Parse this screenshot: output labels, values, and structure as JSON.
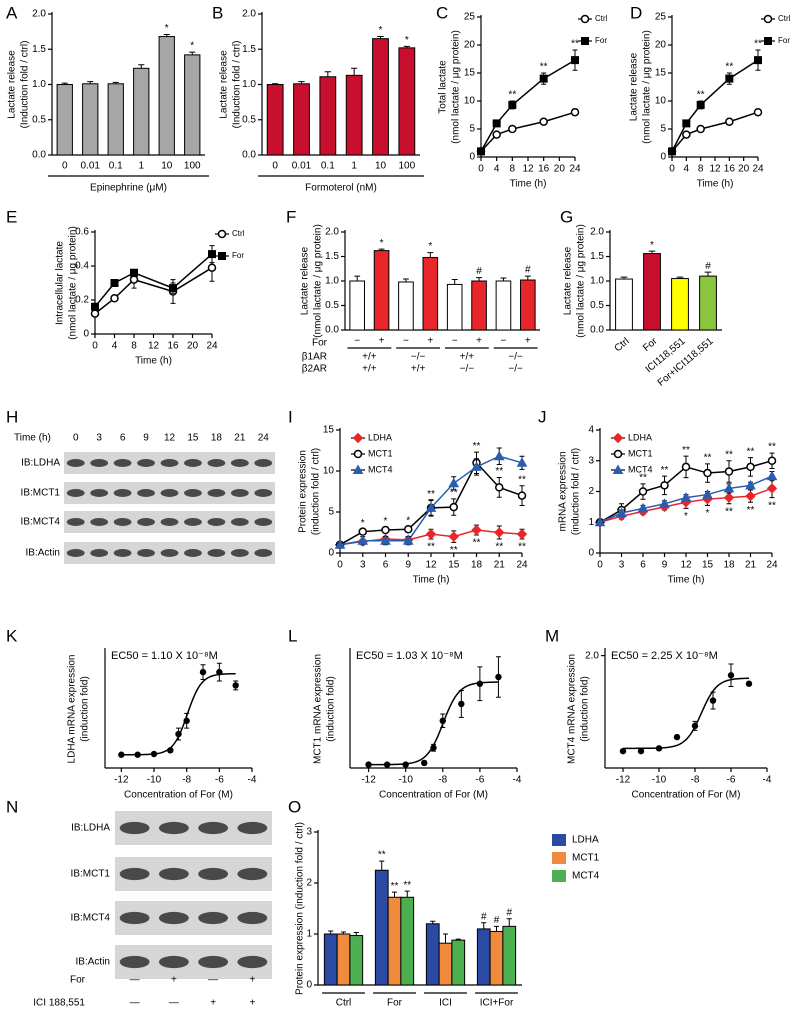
{
  "chart_data": [
    {
      "panel": "A",
      "type": "bar",
      "categories": [
        "0",
        "0.01",
        "0.1",
        "1",
        "10",
        "100"
      ],
      "values": [
        1.0,
        1.01,
        1.01,
        1.23,
        1.68,
        1.42
      ],
      "errors": [
        0.02,
        0.03,
        0.02,
        0.05,
        0.03,
        0.04
      ],
      "significance": [
        null,
        null,
        null,
        null,
        "*",
        "*"
      ],
      "color": "#a6a6a6",
      "ylim": [
        0,
        2
      ],
      "yticks": [
        {
          "value": 0,
          "label": "0.0"
        },
        0.5,
        {
          "value": 1,
          "label": "1.0"
        },
        1.5,
        {
          "value": 2,
          "label": "2.0"
        }
      ],
      "ylabel": [
        "Lactate release",
        "(Induction fold / ctrl)"
      ],
      "xlabel": "Epinephrine (μM)"
    },
    {
      "panel": "B",
      "type": "bar",
      "categories": [
        "0",
        "0.01",
        "0.1",
        "1",
        "10",
        "100"
      ],
      "values": [
        1.0,
        1.01,
        1.11,
        1.13,
        1.65,
        1.52
      ],
      "errors": [
        0.01,
        0.03,
        0.07,
        0.1,
        0.03,
        0.02
      ],
      "significance": [
        null,
        null,
        null,
        null,
        "*",
        "*"
      ],
      "color": "#c8102e",
      "ylim": [
        0,
        2
      ],
      "yticks": [
        {
          "value": 0,
          "label": "0.0"
        },
        0.5,
        {
          "value": 1,
          "label": "1.0"
        },
        1.5,
        {
          "value": 2,
          "label": "2.0"
        }
      ],
      "ylabel": [
        "Lactate release",
        "(Induction fold / ctrl)"
      ],
      "xlabel": "Formoterol (nM)"
    },
    {
      "panel": "C",
      "type": "line",
      "x": [
        0,
        4,
        8,
        16,
        24
      ],
      "xlim": [
        0,
        24
      ],
      "xticks": [
        0,
        4,
        8,
        12,
        16,
        20,
        24
      ],
      "ylim": [
        0,
        25
      ],
      "yticks": [
        0,
        5,
        10,
        15,
        20,
        25
      ],
      "ylabel": [
        "Total lactate",
        "(nmol lactate / μg protein)"
      ],
      "xlabel": "Time (h)",
      "legend": "right",
      "series": [
        {
          "name": "Ctrl",
          "color": "#000000",
          "marker": "circle-open",
          "values": [
            1,
            4,
            5,
            6.3,
            8
          ],
          "errors": [
            0.3,
            0.4,
            0.5,
            0.5,
            0.5
          ]
        },
        {
          "name": "For",
          "color": "#000000",
          "marker": "square",
          "values": [
            1,
            6,
            9.3,
            14,
            17.3
          ],
          "errors": [
            0.3,
            0.4,
            0.7,
            1,
            1.8
          ],
          "significance": [
            null,
            null,
            "**",
            "**",
            "**"
          ]
        }
      ]
    },
    {
      "panel": "D",
      "type": "line",
      "x": [
        0,
        4,
        8,
        16,
        24
      ],
      "xlim": [
        0,
        24
      ],
      "xticks": [
        0,
        4,
        8,
        12,
        16,
        20,
        24
      ],
      "ylim": [
        0,
        25
      ],
      "yticks": [
        0,
        5,
        10,
        15,
        20,
        25
      ],
      "ylabel": [
        "Lactate release",
        "(nmol lactate / μg protein)"
      ],
      "xlabel": "Time (h)",
      "legend": "right",
      "series": [
        {
          "name": "Ctrl",
          "color": "#000000",
          "marker": "circle-open",
          "values": [
            1,
            4,
            5,
            6.3,
            8
          ],
          "errors": [
            0.3,
            0.4,
            0.5,
            0.5,
            0.5
          ]
        },
        {
          "name": "For",
          "color": "#000000",
          "marker": "square",
          "values": [
            1,
            6,
            9.3,
            14,
            17.3
          ],
          "errors": [
            0.3,
            0.4,
            0.7,
            1,
            1.8
          ],
          "significance": [
            null,
            null,
            "**",
            "**",
            "**"
          ]
        }
      ]
    },
    {
      "panel": "E",
      "type": "line",
      "x": [
        0,
        4,
        8,
        16,
        24
      ],
      "xlim": [
        0,
        24
      ],
      "xticks": [
        0,
        4,
        8,
        12,
        16,
        20,
        24
      ],
      "ylim": [
        0,
        0.6
      ],
      "yticks": [
        0,
        0.2,
        0.4,
        0.6
      ],
      "ylabel": [
        "Intracellular lactate",
        "(nmol lactate / μg protein)"
      ],
      "xlabel": "Time (h)",
      "legend": "right",
      "series": [
        {
          "name": "Ctrl",
          "color": "#000000",
          "marker": "circle-open",
          "values": [
            0.12,
            0.21,
            0.32,
            0.25,
            0.39
          ],
          "errors": [
            0.01,
            0.01,
            0.05,
            0.07,
            0.08
          ]
        },
        {
          "name": "For",
          "color": "#000000",
          "marker": "square",
          "values": [
            0.16,
            0.3,
            0.36,
            0.27,
            0.47
          ],
          "errors": [
            0.02,
            0.01,
            0.02,
            0.03,
            0.05
          ]
        }
      ]
    },
    {
      "panel": "F",
      "type": "bar",
      "categories": [
        "−",
        "+",
        "−",
        "+",
        "−",
        "+",
        "−",
        "+"
      ],
      "category_name": "For",
      "rows": [
        {
          "name": "β1AR",
          "labels": [
            "+/+",
            "−/−",
            "+/+",
            "−/−"
          ]
        },
        {
          "name": "β2AR",
          "labels": [
            "+/+",
            "+/+",
            "−/−",
            "−/−"
          ]
        }
      ],
      "values": [
        1.0,
        1.62,
        0.98,
        1.48,
        0.93,
        1.0,
        1.0,
        1.02
      ],
      "errors": [
        0.1,
        0.03,
        0.06,
        0.1,
        0.1,
        0.07,
        0.06,
        0.08
      ],
      "significance": [
        null,
        "*",
        null,
        "*",
        null,
        "#",
        null,
        "#"
      ],
      "colors": [
        "#ffffff",
        "#e8262a",
        "#ffffff",
        "#e8262a",
        "#ffffff",
        "#e8262a",
        "#ffffff",
        "#e8262a"
      ],
      "ylim": [
        0,
        2
      ],
      "yticks": [
        {
          "value": 0,
          "label": "0.0"
        },
        0.5,
        {
          "value": 1,
          "label": "1.0"
        },
        1.5,
        {
          "value": 2,
          "label": "2.0"
        }
      ],
      "ylabel": [
        "Lactate release",
        "(nmol lactate / μg protein)"
      ]
    },
    {
      "panel": "G",
      "type": "bar",
      "categories": [
        "Ctrl",
        "For",
        "ICI118,551",
        "For+ICI118,551"
      ],
      "values": [
        1.04,
        1.56,
        1.05,
        1.1
      ],
      "errors": [
        0.04,
        0.05,
        0.03,
        0.08
      ],
      "significance": [
        null,
        "*",
        null,
        "#"
      ],
      "colors": [
        "#ffffff",
        "#c8102e",
        "#ffff00",
        "#8cc63f"
      ],
      "ylim": [
        0,
        2
      ],
      "yticks": [
        {
          "value": 0,
          "label": "0.0"
        },
        0.5,
        {
          "value": 1,
          "label": "1.0"
        },
        1.5,
        {
          "value": 2,
          "label": "2.0"
        }
      ],
      "ylabel": [
        "Lactate release",
        "(nmol lactate / μg protein)"
      ]
    },
    {
      "panel": "H",
      "type": "blot",
      "header": "Time (h)",
      "lanes": [
        "0",
        "3",
        "6",
        "9",
        "12",
        "15",
        "18",
        "21",
        "24"
      ],
      "rows": [
        "IB:LDHA",
        "IB:MCT1",
        "IB:MCT4",
        "IB:Actin"
      ]
    },
    {
      "panel": "I",
      "type": "line",
      "x": [
        0,
        3,
        6,
        9,
        12,
        15,
        18,
        21,
        24
      ],
      "xlim": [
        0,
        24
      ],
      "xticks": [
        0,
        3,
        6,
        9,
        12,
        15,
        18,
        21,
        24
      ],
      "ylim": [
        0,
        15
      ],
      "yticks": [
        0,
        5,
        10,
        15
      ],
      "ylabel": [
        "Protein expression",
        "(induction fold / ctrl)"
      ],
      "xlabel": "Time (h)",
      "legend": "upper-left",
      "series": [
        {
          "name": "LDHA",
          "color": "#e8262a",
          "marker": "diamond",
          "values": [
            1,
            1.4,
            1.7,
            1.6,
            2.3,
            2.0,
            2.8,
            2.5,
            2.3
          ],
          "errors": [
            0.1,
            0.2,
            0.3,
            0.4,
            0.6,
            0.7,
            0.6,
            0.8,
            0.6
          ],
          "significance": [
            null,
            null,
            null,
            null,
            "**",
            "**",
            "**",
            "**",
            "**"
          ]
        },
        {
          "name": "MCT1",
          "color": "#000000",
          "marker": "circle-open",
          "values": [
            1,
            2.6,
            2.8,
            2.9,
            5.5,
            5.6,
            11,
            8,
            7
          ],
          "errors": [
            0.2,
            0.3,
            0.3,
            0.3,
            0.9,
            1,
            1.3,
            1.2,
            1.2
          ],
          "significance": [
            null,
            "*",
            "*",
            "*",
            "**",
            "**",
            "**",
            "**",
            "**"
          ]
        },
        {
          "name": "MCT4",
          "color": "#2a5db0",
          "marker": "triangle",
          "values": [
            1,
            1.5,
            1.5,
            1.5,
            5.5,
            8.5,
            10.5,
            11.8,
            11
          ],
          "errors": [
            0.2,
            0.5,
            0.5,
            0.5,
            1,
            0.8,
            1,
            1,
            0.8
          ]
        }
      ]
    },
    {
      "panel": "J",
      "type": "line",
      "x": [
        0,
        3,
        6,
        9,
        12,
        15,
        18,
        21,
        24
      ],
      "xlim": [
        0,
        24
      ],
      "xticks": [
        0,
        3,
        6,
        9,
        12,
        15,
        18,
        21,
        24
      ],
      "ylim": [
        0,
        4
      ],
      "yticks": [
        0,
        1,
        2,
        3,
        4
      ],
      "ylabel": [
        "mRNA expression",
        "(induction fold / ctrl)"
      ],
      "xlabel": "Time (h)",
      "legend": "upper-left",
      "series": [
        {
          "name": "LDHA",
          "color": "#e8262a",
          "marker": "diamond",
          "values": [
            1,
            1.2,
            1.35,
            1.5,
            1.65,
            1.75,
            1.8,
            1.85,
            2.1
          ],
          "errors": [
            0.05,
            0.1,
            0.1,
            0.1,
            0.2,
            0.2,
            0.2,
            0.2,
            0.3
          ],
          "significance": [
            null,
            null,
            null,
            null,
            "*",
            "*",
            "**",
            "**",
            "**"
          ]
        },
        {
          "name": "MCT1",
          "color": "#000000",
          "marker": "circle-open",
          "values": [
            1,
            1.4,
            2.0,
            2.2,
            2.8,
            2.6,
            2.65,
            2.8,
            3.0
          ],
          "errors": [
            0.05,
            0.2,
            0.25,
            0.3,
            0.35,
            0.3,
            0.35,
            0.3,
            0.25
          ],
          "significance": [
            null,
            null,
            "**",
            "**",
            "**",
            "**",
            "**",
            "**",
            "**"
          ]
        },
        {
          "name": "MCT4",
          "color": "#2a5db0",
          "marker": "triangle",
          "values": [
            1,
            1.3,
            1.45,
            1.6,
            1.8,
            1.9,
            2.1,
            2.2,
            2.5
          ],
          "errors": [
            0.05,
            0.1,
            0.1,
            0.1,
            0.1,
            0.1,
            0.15,
            0.1,
            0.15
          ]
        }
      ]
    },
    {
      "panel": "K",
      "type": "scatter",
      "annotation": "EC50 = 1.10 X 10⁻⁸M",
      "ec50": 1.1e-08,
      "fit_bottom": 0.9,
      "fit_top": 6.4,
      "x": [
        -12,
        -11,
        -10,
        -9,
        -8.5,
        -8,
        -7,
        -6,
        -5
      ],
      "values": [
        0.9,
        0.9,
        0.95,
        1.2,
        2.3,
        3.2,
        6.5,
        6.5,
        5.6
      ],
      "errors": [
        0.05,
        0.05,
        0.05,
        0.1,
        0.4,
        0.5,
        0.5,
        0.6,
        0.3
      ],
      "xlim": [
        -13,
        -4
      ],
      "xticks": [
        -12,
        -10,
        -8,
        -6,
        -4
      ],
      "ylim": [
        0,
        8
      ],
      "ylabel": [
        "LDHA mRNA expression",
        "(induction fold)"
      ],
      "xlabel": "Concentration of For (M)"
    },
    {
      "panel": "L",
      "type": "scatter",
      "annotation": "EC50 = 1.03 X 10⁻⁸M",
      "ec50": 1.03e-08,
      "fit_bottom": 0.1,
      "fit_top": 2.55,
      "x": [
        -12,
        -11,
        -10,
        -9,
        -8.5,
        -8,
        -7,
        -6,
        -5
      ],
      "values": [
        0.1,
        0.1,
        0.1,
        0.15,
        0.6,
        1.4,
        1.9,
        2.5,
        2.7
      ],
      "errors": [
        0.02,
        0.02,
        0.02,
        0.05,
        0.1,
        0.2,
        0.4,
        0.5,
        0.6
      ],
      "xlim": [
        -13,
        -4
      ],
      "xticks": [
        -12,
        -10,
        -8,
        -6,
        -4
      ],
      "ylim": [
        0,
        3.5
      ],
      "ylabel": [
        "MCT1 mRNA expression",
        "(induction fold)"
      ],
      "xlabel": "Concentration of For (M)"
    },
    {
      "panel": "M",
      "type": "scatter",
      "annotation": "EC50 = 2.25 X 10⁻⁸M",
      "ec50": 2.25e-08,
      "fit_bottom": 0.35,
      "fit_top": 1.6,
      "x": [
        -12,
        -11,
        -10,
        -9,
        -8,
        -7,
        -6,
        -5
      ],
      "values": [
        0.3,
        0.3,
        0.35,
        0.55,
        0.75,
        1.2,
        1.65,
        1.5
      ],
      "errors": [
        0.02,
        0.02,
        0.02,
        0.03,
        0.08,
        0.15,
        0.2,
        0.03
      ],
      "xlim": [
        -13,
        -4
      ],
      "xticks": [
        -12,
        -10,
        -8,
        -6,
        -4
      ],
      "ylim": [
        0,
        2.1
      ],
      "yticks": [
        {
          "value": 2,
          "label": "2.0"
        }
      ],
      "ylabel": [
        "MCT4 mRNA expression",
        "(induction fold)"
      ],
      "xlabel": "Concentration of For (M)"
    },
    {
      "panel": "N",
      "type": "blot",
      "rows": [
        "IB:LDHA",
        "IB:MCT1",
        "IB:MCT4",
        "IB:Actin"
      ],
      "conditions": [
        {
          "name": "For",
          "labels": [
            "—",
            "+",
            "—",
            "+"
          ]
        },
        {
          "name": "ICI 188,551",
          "labels": [
            "—",
            "—",
            "+",
            "+"
          ]
        }
      ]
    },
    {
      "panel": "O",
      "type": "bar",
      "categories": [
        "Ctrl",
        "For",
        "ICI",
        "ICI+For"
      ],
      "ylim": [
        0,
        3
      ],
      "yticks": [
        0,
        1,
        2,
        3
      ],
      "ylabel": [
        "Protein expression (induction fold / ctrl)"
      ],
      "series": [
        {
          "name": "LDHA",
          "color": "#2a4aa4",
          "values": [
            1.0,
            2.25,
            1.2,
            1.1
          ],
          "errors": [
            0.06,
            0.18,
            0.05,
            0.12
          ],
          "significance": [
            null,
            "**",
            null,
            "#"
          ]
        },
        {
          "name": "MCT1",
          "color": "#f08a3c",
          "values": [
            1.0,
            1.72,
            0.82,
            1.05
          ],
          "errors": [
            0.04,
            0.1,
            0.18,
            0.1
          ],
          "significance": [
            null,
            "**",
            null,
            "#"
          ]
        },
        {
          "name": "MCT4",
          "color": "#4caf50",
          "values": [
            0.97,
            1.72,
            0.88,
            1.15
          ],
          "errors": [
            0.06,
            0.12,
            0.02,
            0.15
          ],
          "significance": [
            null,
            "**",
            null,
            "#"
          ]
        }
      ]
    }
  ]
}
